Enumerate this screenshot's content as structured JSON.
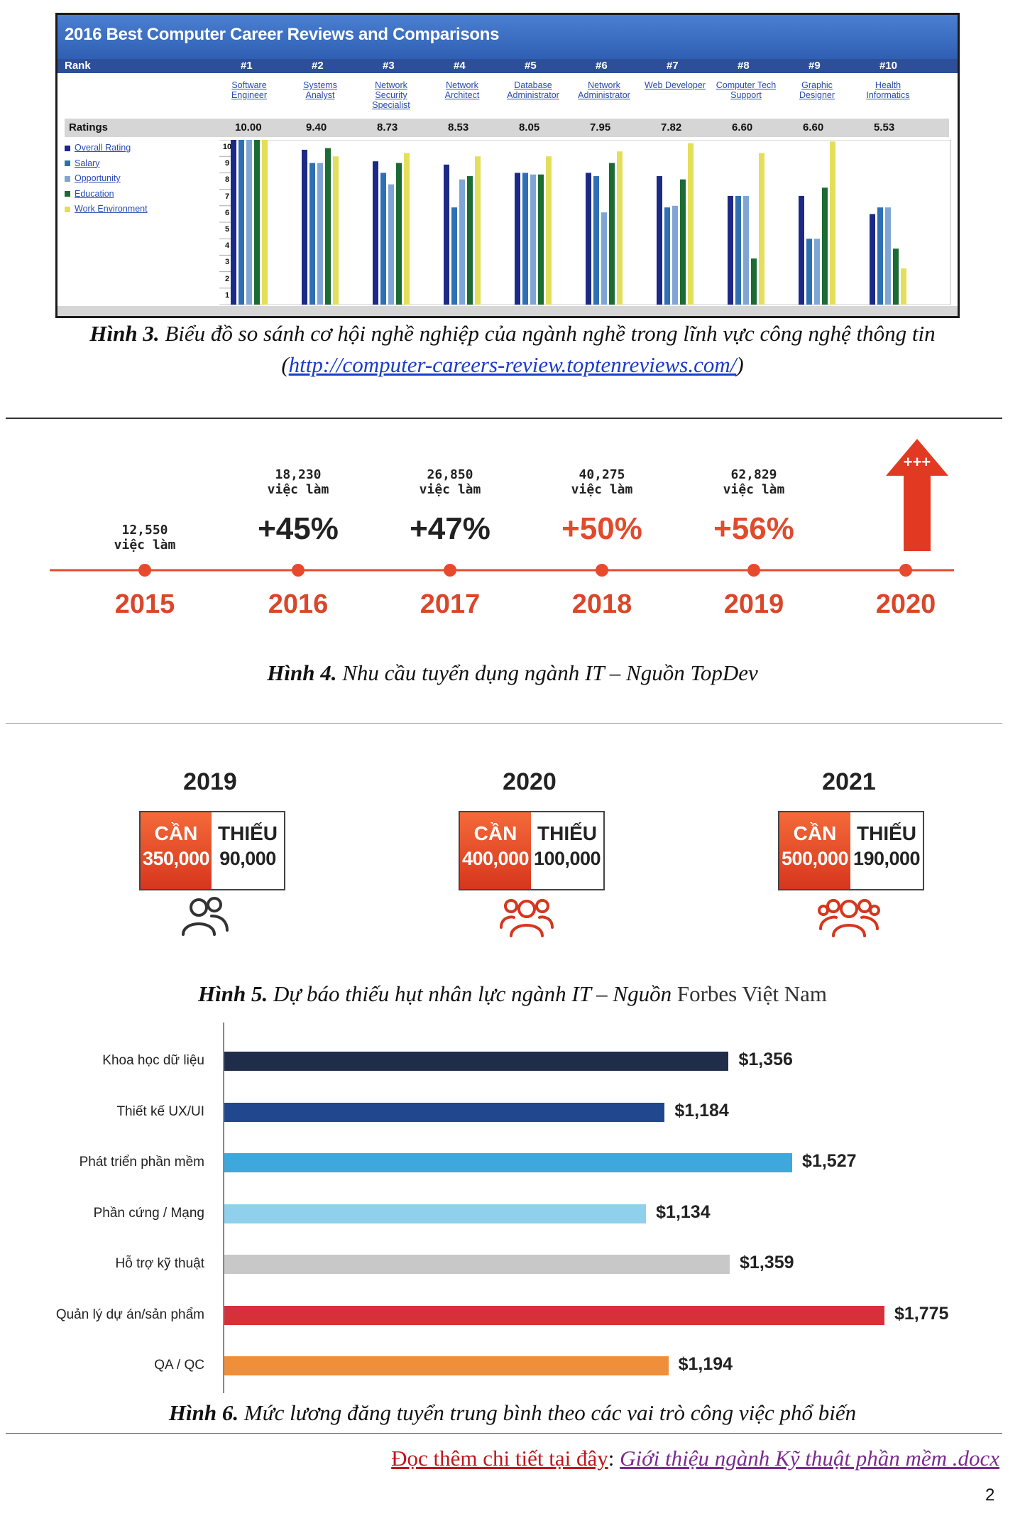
{
  "fig3": {
    "title": "2016 Best Computer Career Reviews and Comparisons",
    "rank_label": "Rank",
    "ratings_label": "Ratings",
    "ranks": [
      "#1",
      "#2",
      "#3",
      "#4",
      "#5",
      "#6",
      "#7",
      "#8",
      "#9",
      "#10"
    ],
    "jobs": [
      [
        "Software",
        "Engineer"
      ],
      [
        "Systems",
        "Analyst"
      ],
      [
        "Network",
        "Security",
        "Specialist"
      ],
      [
        "Network",
        "Architect"
      ],
      [
        "Database",
        "Administrator"
      ],
      [
        "Network",
        "Administrator"
      ],
      [
        "Web Developer"
      ],
      [
        "Computer Tech",
        "Support"
      ],
      [
        "Graphic",
        "Designer"
      ],
      [
        "Health",
        "Informatics"
      ]
    ],
    "scores": [
      "10.00",
      "9.40",
      "8.73",
      "8.53",
      "8.05",
      "7.95",
      "7.82",
      "6.60",
      "6.60",
      "5.53"
    ],
    "legend": [
      "Overall Rating",
      "Salary",
      "Opportunity",
      "Education",
      "Work Environment"
    ],
    "colors": {
      "overall": "#1c2a86",
      "salary": "#2f6fb4",
      "opportunity": "#7fa5d6",
      "education": "#1d6b34",
      "work": "#e4de5a"
    },
    "ticks": [
      "10",
      "9",
      "8",
      "7",
      "6",
      "5",
      "4",
      "3",
      "2",
      "1"
    ]
  },
  "chart_data": [
    {
      "type": "bar",
      "title": "2016 Best Computer Career Reviews and Comparisons",
      "categories": [
        "Software Engineer",
        "Systems Analyst",
        "Network Security Specialist",
        "Network Architect",
        "Database Administrator",
        "Network Administrator",
        "Web Developer",
        "Computer Tech Support",
        "Graphic Designer",
        "Health Informatics"
      ],
      "ylim": [
        0,
        10
      ],
      "series": [
        {
          "name": "Overall Rating",
          "values": [
            10,
            9.4,
            8.7,
            8.5,
            8.0,
            8.0,
            7.8,
            6.6,
            6.6,
            5.5
          ]
        },
        {
          "name": "Salary",
          "values": [
            10,
            8.6,
            8.0,
            5.9,
            8.0,
            7.8,
            5.9,
            6.6,
            4.0,
            5.9
          ]
        },
        {
          "name": "Opportunity",
          "values": [
            10,
            8.6,
            7.3,
            7.6,
            7.9,
            5.6,
            6.0,
            6.6,
            4.0,
            5.9
          ]
        },
        {
          "name": "Education",
          "values": [
            10,
            9.5,
            8.6,
            7.8,
            7.9,
            8.6,
            7.6,
            2.8,
            7.1,
            3.4
          ]
        },
        {
          "name": "Work Environment",
          "values": [
            10,
            9.0,
            9.2,
            9.0,
            9.0,
            9.3,
            9.8,
            9.2,
            9.9,
            2.2
          ]
        }
      ],
      "legend": "left"
    },
    {
      "type": "line",
      "title": "",
      "x": [
        "2015",
        "2016",
        "2017",
        "2018",
        "2019",
        "2020"
      ],
      "counts": [
        "12,550",
        "18,230",
        "26,850",
        "40,275",
        "62,829",
        ""
      ],
      "count_unit": "việc làm",
      "growth": [
        "",
        "+45%",
        "+47%",
        "+50%",
        "+56%"
      ],
      "arrow_label": "+++",
      "colors": {
        "line": "#e8492d",
        "year": "#d9472b",
        "growth_dark": "#222222",
        "growth_red": "#e24a2c"
      }
    },
    {
      "type": "table",
      "title": "",
      "need_label": "CẦN",
      "short_label": "THIẾU",
      "years": [
        {
          "year": "2019",
          "need": "350,000",
          "short": "90,000"
        },
        {
          "year": "2020",
          "need": "400,000",
          "short": "100,000"
        },
        {
          "year": "2021",
          "need": "500,000",
          "short": "190,000"
        }
      ]
    },
    {
      "type": "bar",
      "title": "",
      "orientation": "horizontal",
      "categories": [
        "Khoa học dữ liệu",
        "Thiết kế UX/UI",
        "Phát triển phần mềm",
        "Phần cứng / Mạng",
        "Hỗ trợ kỹ thuật",
        "Quản lý dự án/sản phẩm",
        "QA / QC"
      ],
      "values": [
        1356,
        1184,
        1527,
        1134,
        1359,
        1775,
        1194
      ],
      "labels": [
        "$1,356",
        "$1,184",
        "$1,527",
        "$1,134",
        "$1,359",
        "$1,775",
        "$1,194"
      ],
      "colors": [
        "#1f2d4a",
        "#21488f",
        "#3ea7dc",
        "#8fd0ec",
        "#c8c8c8",
        "#d6313a",
        "#ef8f3a"
      ],
      "xlim": [
        0,
        1800
      ]
    }
  ],
  "captions": {
    "fig3_bold": "Hình 3.",
    "fig3_text": " Biểu đồ so sánh cơ hội nghề nghiệp của ngành nghề trong lĩnh vực công nghệ thông tin",
    "fig3_link": "http://computer-careers-review.toptenreviews.com/",
    "fig4_bold": "Hình 4.",
    "fig4_text": " Nhu cầu tuyển dụng ngành IT – Nguồn TopDev",
    "fig5_bold": "Hình 5.",
    "fig5_text": " Dự báo thiếu hụt nhân lực ngành IT – Nguồn ",
    "fig5_src": "Forbes Việt Nam",
    "fig6_bold": "Hình 6.",
    "fig6_text": " Mức lương đăng tuyển trung bình theo các vai trò công việc phổ biến"
  },
  "read_more": {
    "prefix": "Đọc thêm chi tiết tại đây",
    "link": "Giới thiệu ngành Kỹ thuật phần mềm .docx"
  },
  "page_number": "2"
}
